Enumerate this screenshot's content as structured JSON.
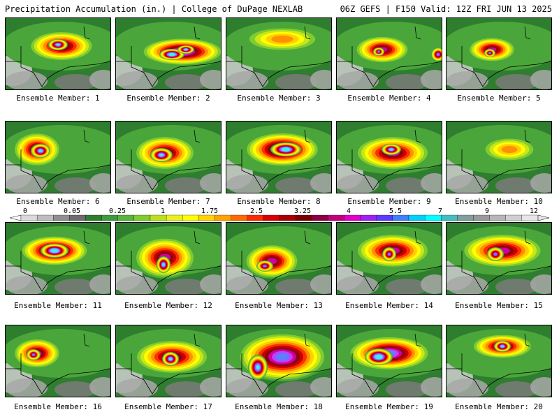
{
  "header": {
    "left": "Precipitation Accumulation (in.) | College of DuPage NEXLAB",
    "right": "06Z GEFS | F150 Valid: 12Z FRI JUN 13 2025"
  },
  "colorbar": {
    "labels": [
      "0",
      "0.05",
      "0.25",
      "1",
      "1.75",
      "2.5",
      "3.25",
      "4",
      "5.5",
      "7",
      "9",
      "12"
    ],
    "colors": [
      "#d9d9d9",
      "#bdbdbd",
      "#8f8f8f",
      "#6c6c6c",
      "#2f7d2f",
      "#3f9a3f",
      "#58b43a",
      "#7fcc2e",
      "#b9e21c",
      "#e8f21a",
      "#ffff00",
      "#ffd400",
      "#ffa200",
      "#ff6a00",
      "#ff2b00",
      "#d80000",
      "#a80000",
      "#7a0000",
      "#8b0040",
      "#c0007a",
      "#e000c8",
      "#a020f0",
      "#5a3cff",
      "#3f7fff",
      "#00d0ff",
      "#00ffff",
      "#3fbfbf",
      "#7f9f9f",
      "#9a9a9a",
      "#b5b5b5",
      "#cfcfcf",
      "#e6e6e6"
    ]
  },
  "panels": [
    {
      "caption": "Ensemble Member: 1"
    },
    {
      "caption": "Ensemble Member: 2"
    },
    {
      "caption": "Ensemble Member: 3"
    },
    {
      "caption": "Ensemble Member: 4"
    },
    {
      "caption": "Ensemble Member: 5"
    },
    {
      "caption": "Ensemble Member: 6"
    },
    {
      "caption": "Ensemble Member: 7"
    },
    {
      "caption": "Ensemble Member: 8"
    },
    {
      "caption": "Ensemble Member: 9"
    },
    {
      "caption": "Ensemble Member: 10"
    },
    {
      "caption": "Ensemble Member: 11"
    },
    {
      "caption": "Ensemble Member: 12"
    },
    {
      "caption": "Ensemble Member: 13"
    },
    {
      "caption": "Ensemble Member: 14"
    },
    {
      "caption": "Ensemble Member: 15"
    },
    {
      "caption": "Ensemble Member: 16"
    },
    {
      "caption": "Ensemble Member: 17"
    },
    {
      "caption": "Ensemble Member: 18"
    },
    {
      "caption": "Ensemble Member: 19"
    },
    {
      "caption": "Ensemble Member: 20"
    }
  ]
}
